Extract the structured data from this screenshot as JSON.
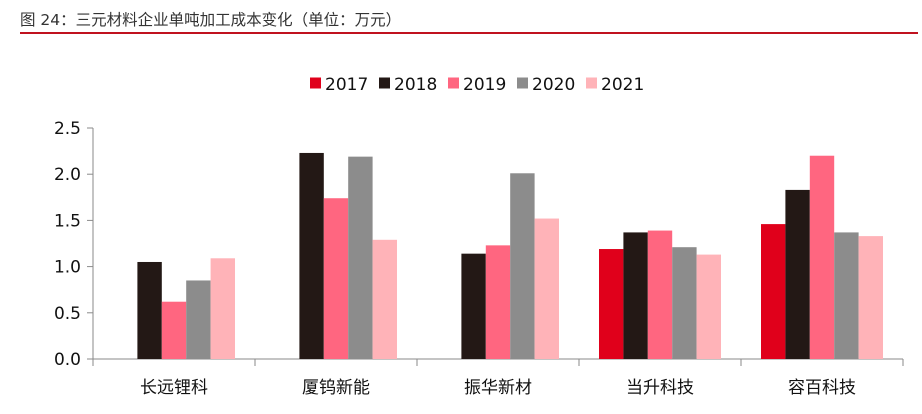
{
  "figure": {
    "title": "图 24：三元材料企业单吨加工成本变化（单位：万元）",
    "rule_color": "#c0121f"
  },
  "chart_data": {
    "type": "bar",
    "title": "图 24：三元材料企业单吨加工成本变化（单位：万元）",
    "xlabel": "",
    "ylabel": "",
    "ylim": [
      0,
      2.5
    ],
    "yticks": [
      "0.0",
      "0.5",
      "1.0",
      "1.5",
      "2.0",
      "2.5"
    ],
    "grid": false,
    "legend_position": "top-center",
    "categories": [
      "长远锂科",
      "厦钨新能",
      "振华新材",
      "当升科技",
      "容百科技"
    ],
    "series": [
      {
        "name": "2017",
        "color": "#e0001b",
        "values": [
          null,
          null,
          null,
          1.19,
          1.46
        ]
      },
      {
        "name": "2018",
        "color": "#231815",
        "values": [
          1.05,
          2.23,
          1.14,
          1.37,
          1.83
        ]
      },
      {
        "name": "2019",
        "color": "#ff6680",
        "values": [
          0.62,
          1.74,
          1.23,
          1.39,
          2.2
        ]
      },
      {
        "name": "2020",
        "color": "#8c8c8c",
        "values": [
          0.85,
          2.19,
          2.01,
          1.21,
          1.37
        ]
      },
      {
        "name": "2021",
        "color": "#ffb3b8",
        "values": [
          1.09,
          1.29,
          1.52,
          1.13,
          1.33
        ]
      }
    ]
  }
}
